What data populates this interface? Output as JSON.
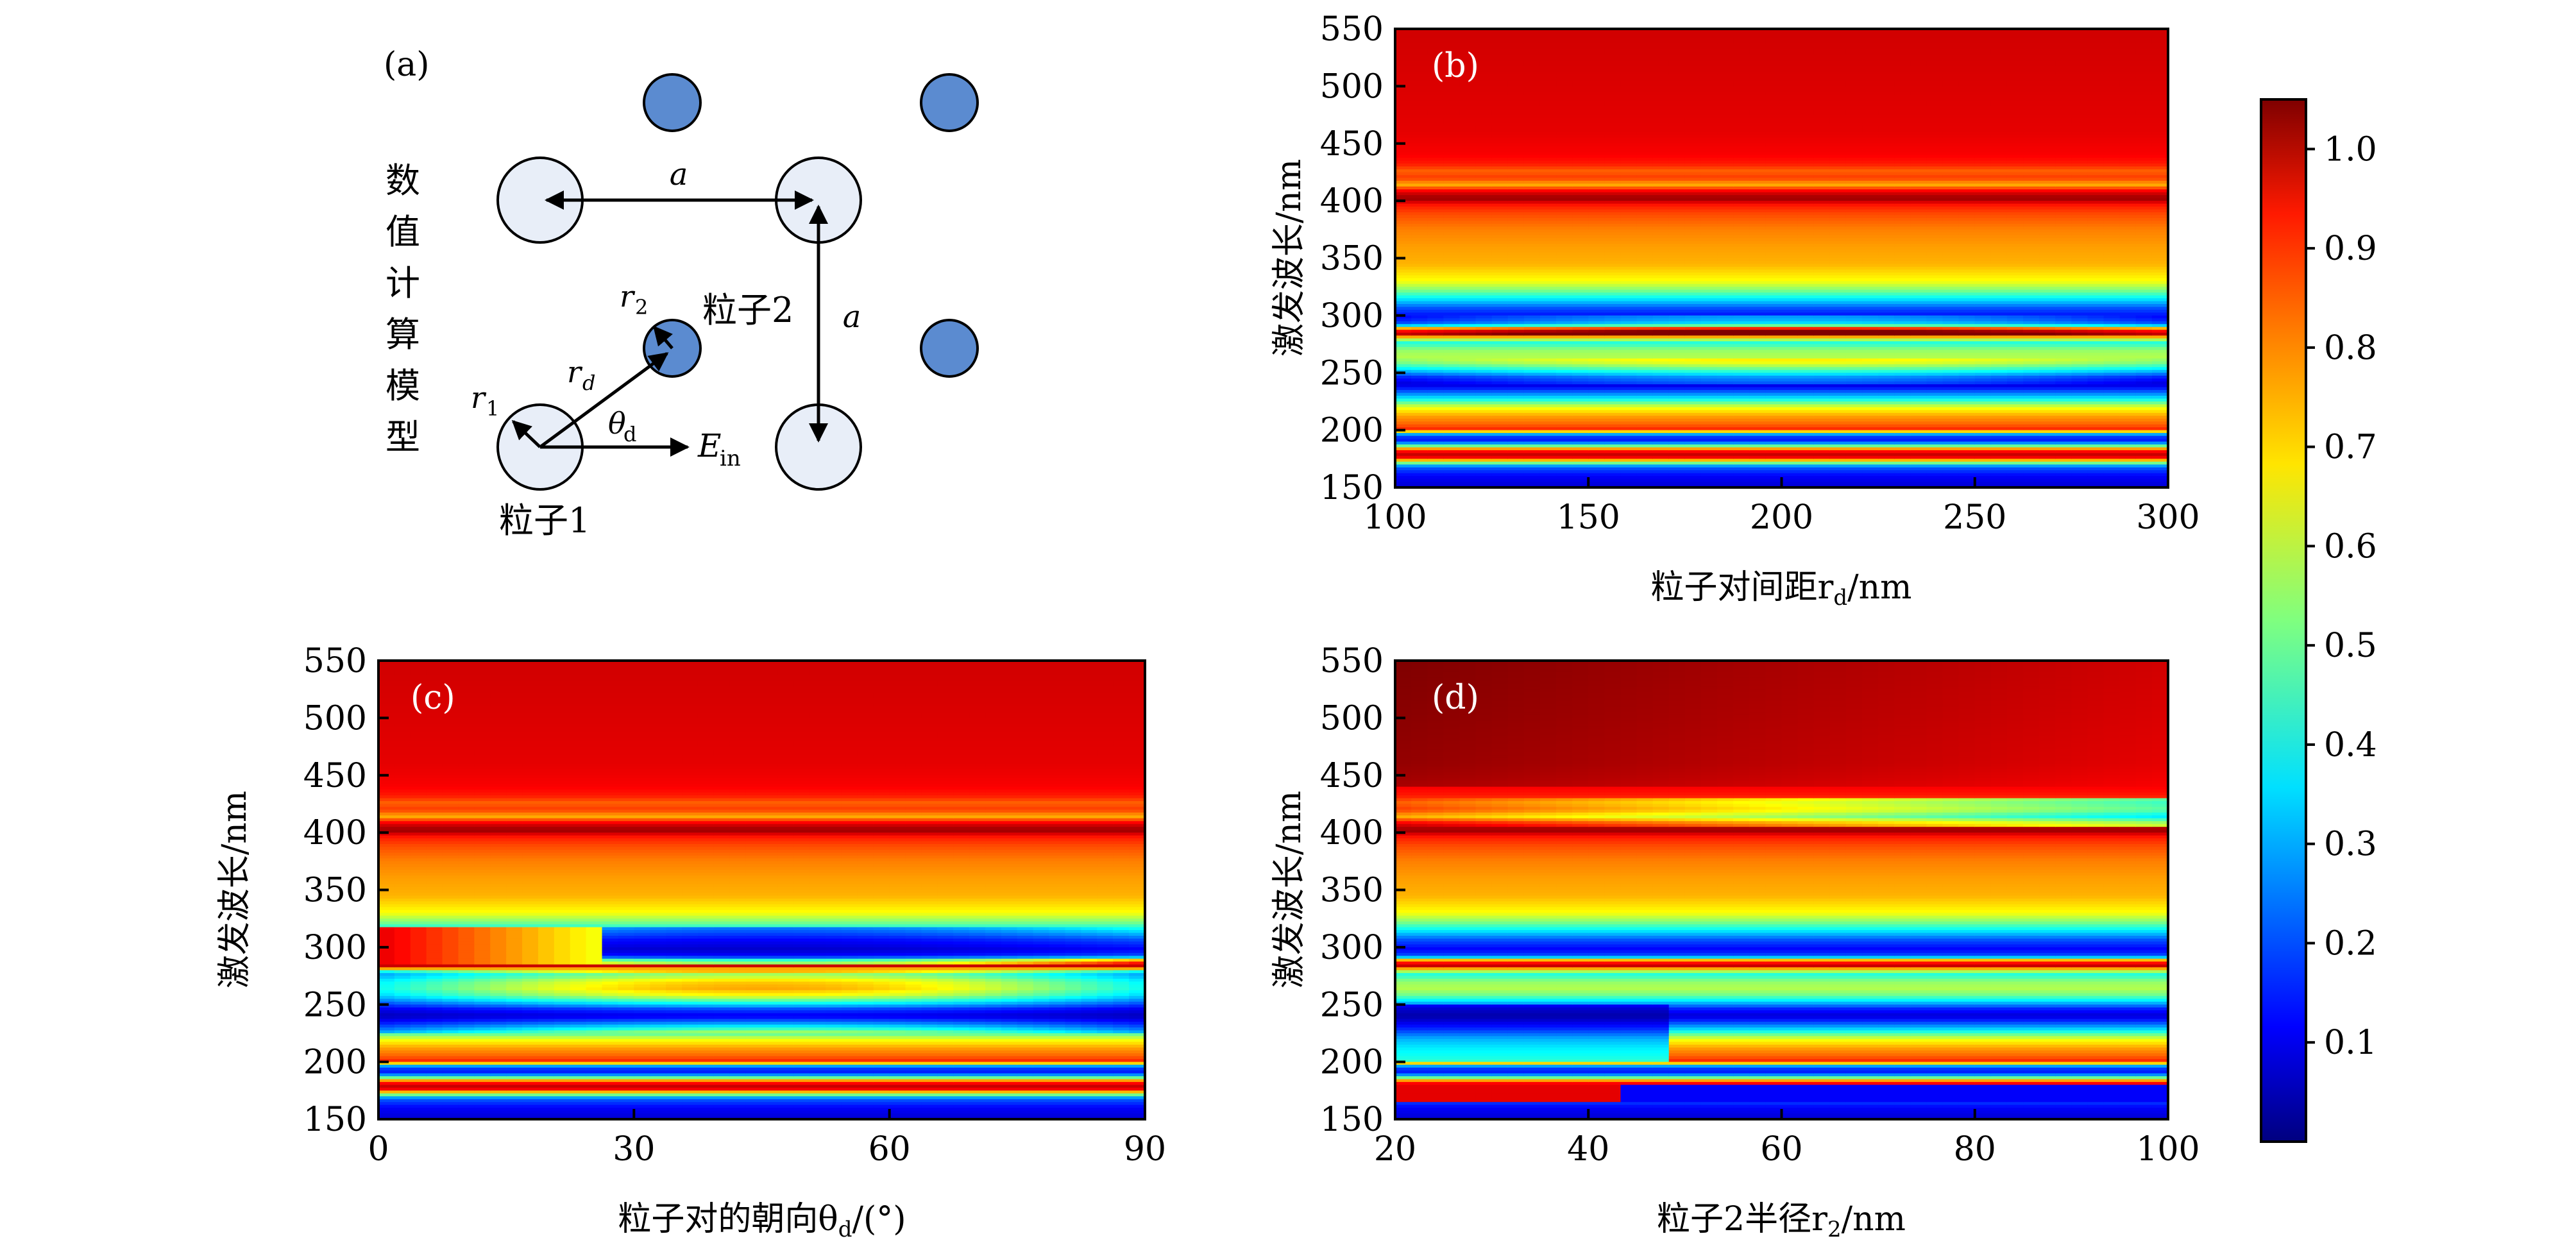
{
  "panel_a": {
    "tag": "(a)",
    "side_title": [
      "数",
      "值",
      "计",
      "算",
      "模",
      "型"
    ],
    "label_a_top": "a",
    "label_a_right": "a",
    "label_particle2": "粒子2",
    "label_particle1": "粒子1",
    "label_r1": "r",
    "label_r1_sub": "1",
    "label_r2": "r",
    "label_r2_sub": "2",
    "label_rd": "r",
    "label_rd_sub": "d",
    "label_theta": "θ",
    "label_theta_sub": "d",
    "label_E": "E",
    "label_E_sub": "in",
    "colors": {
      "large_particle": "#e8eef8",
      "small_particle": "#5b8bd0"
    }
  },
  "colorbar": {
    "ticks": [
      "0.1",
      "0.2",
      "0.3",
      "0.4",
      "0.5",
      "0.6",
      "0.7",
      "0.8",
      "0.9",
      "1.0"
    ],
    "tick_values": [
      0.1,
      0.2,
      0.3,
      0.4,
      0.5,
      0.6,
      0.7,
      0.8,
      0.9,
      1.0
    ],
    "range": [
      0.0,
      1.05
    ]
  },
  "chart_data": [
    {
      "type": "heatmap",
      "tag": "(b)",
      "ylabel": "激发波长/nm",
      "xlabel_main": "粒子对间距r",
      "xlabel_sub": "d",
      "xlabel_unit": "/nm",
      "xlim": [
        100,
        300
      ],
      "ylim": [
        150,
        550
      ],
      "xticks": [
        "100",
        "150",
        "200",
        "250",
        "300"
      ],
      "yticks": [
        "150",
        "200",
        "250",
        "300",
        "350",
        "400",
        "450",
        "500",
        "550"
      ]
    },
    {
      "type": "heatmap",
      "tag": "(c)",
      "ylabel": "激发波长/nm",
      "xlabel_main": "粒子对的朝向θ",
      "xlabel_sub": "d",
      "xlabel_unit": "/(°)",
      "xlim": [
        0,
        90
      ],
      "ylim": [
        150,
        550
      ],
      "xticks": [
        "0",
        "30",
        "60",
        "90"
      ],
      "yticks": [
        "150",
        "200",
        "250",
        "300",
        "350",
        "400",
        "450",
        "500",
        "550"
      ]
    },
    {
      "type": "heatmap",
      "tag": "(d)",
      "ylabel": "激发波长/nm",
      "xlabel_main": "粒子2半径r",
      "xlabel_sub": "2",
      "xlabel_unit": "/nm",
      "xlim": [
        20,
        100
      ],
      "ylim": [
        150,
        550
      ],
      "xticks": [
        "20",
        "40",
        "60",
        "80",
        "100"
      ],
      "yticks": [
        "150",
        "200",
        "250",
        "300",
        "350",
        "400",
        "450",
        "500",
        "550"
      ]
    }
  ]
}
